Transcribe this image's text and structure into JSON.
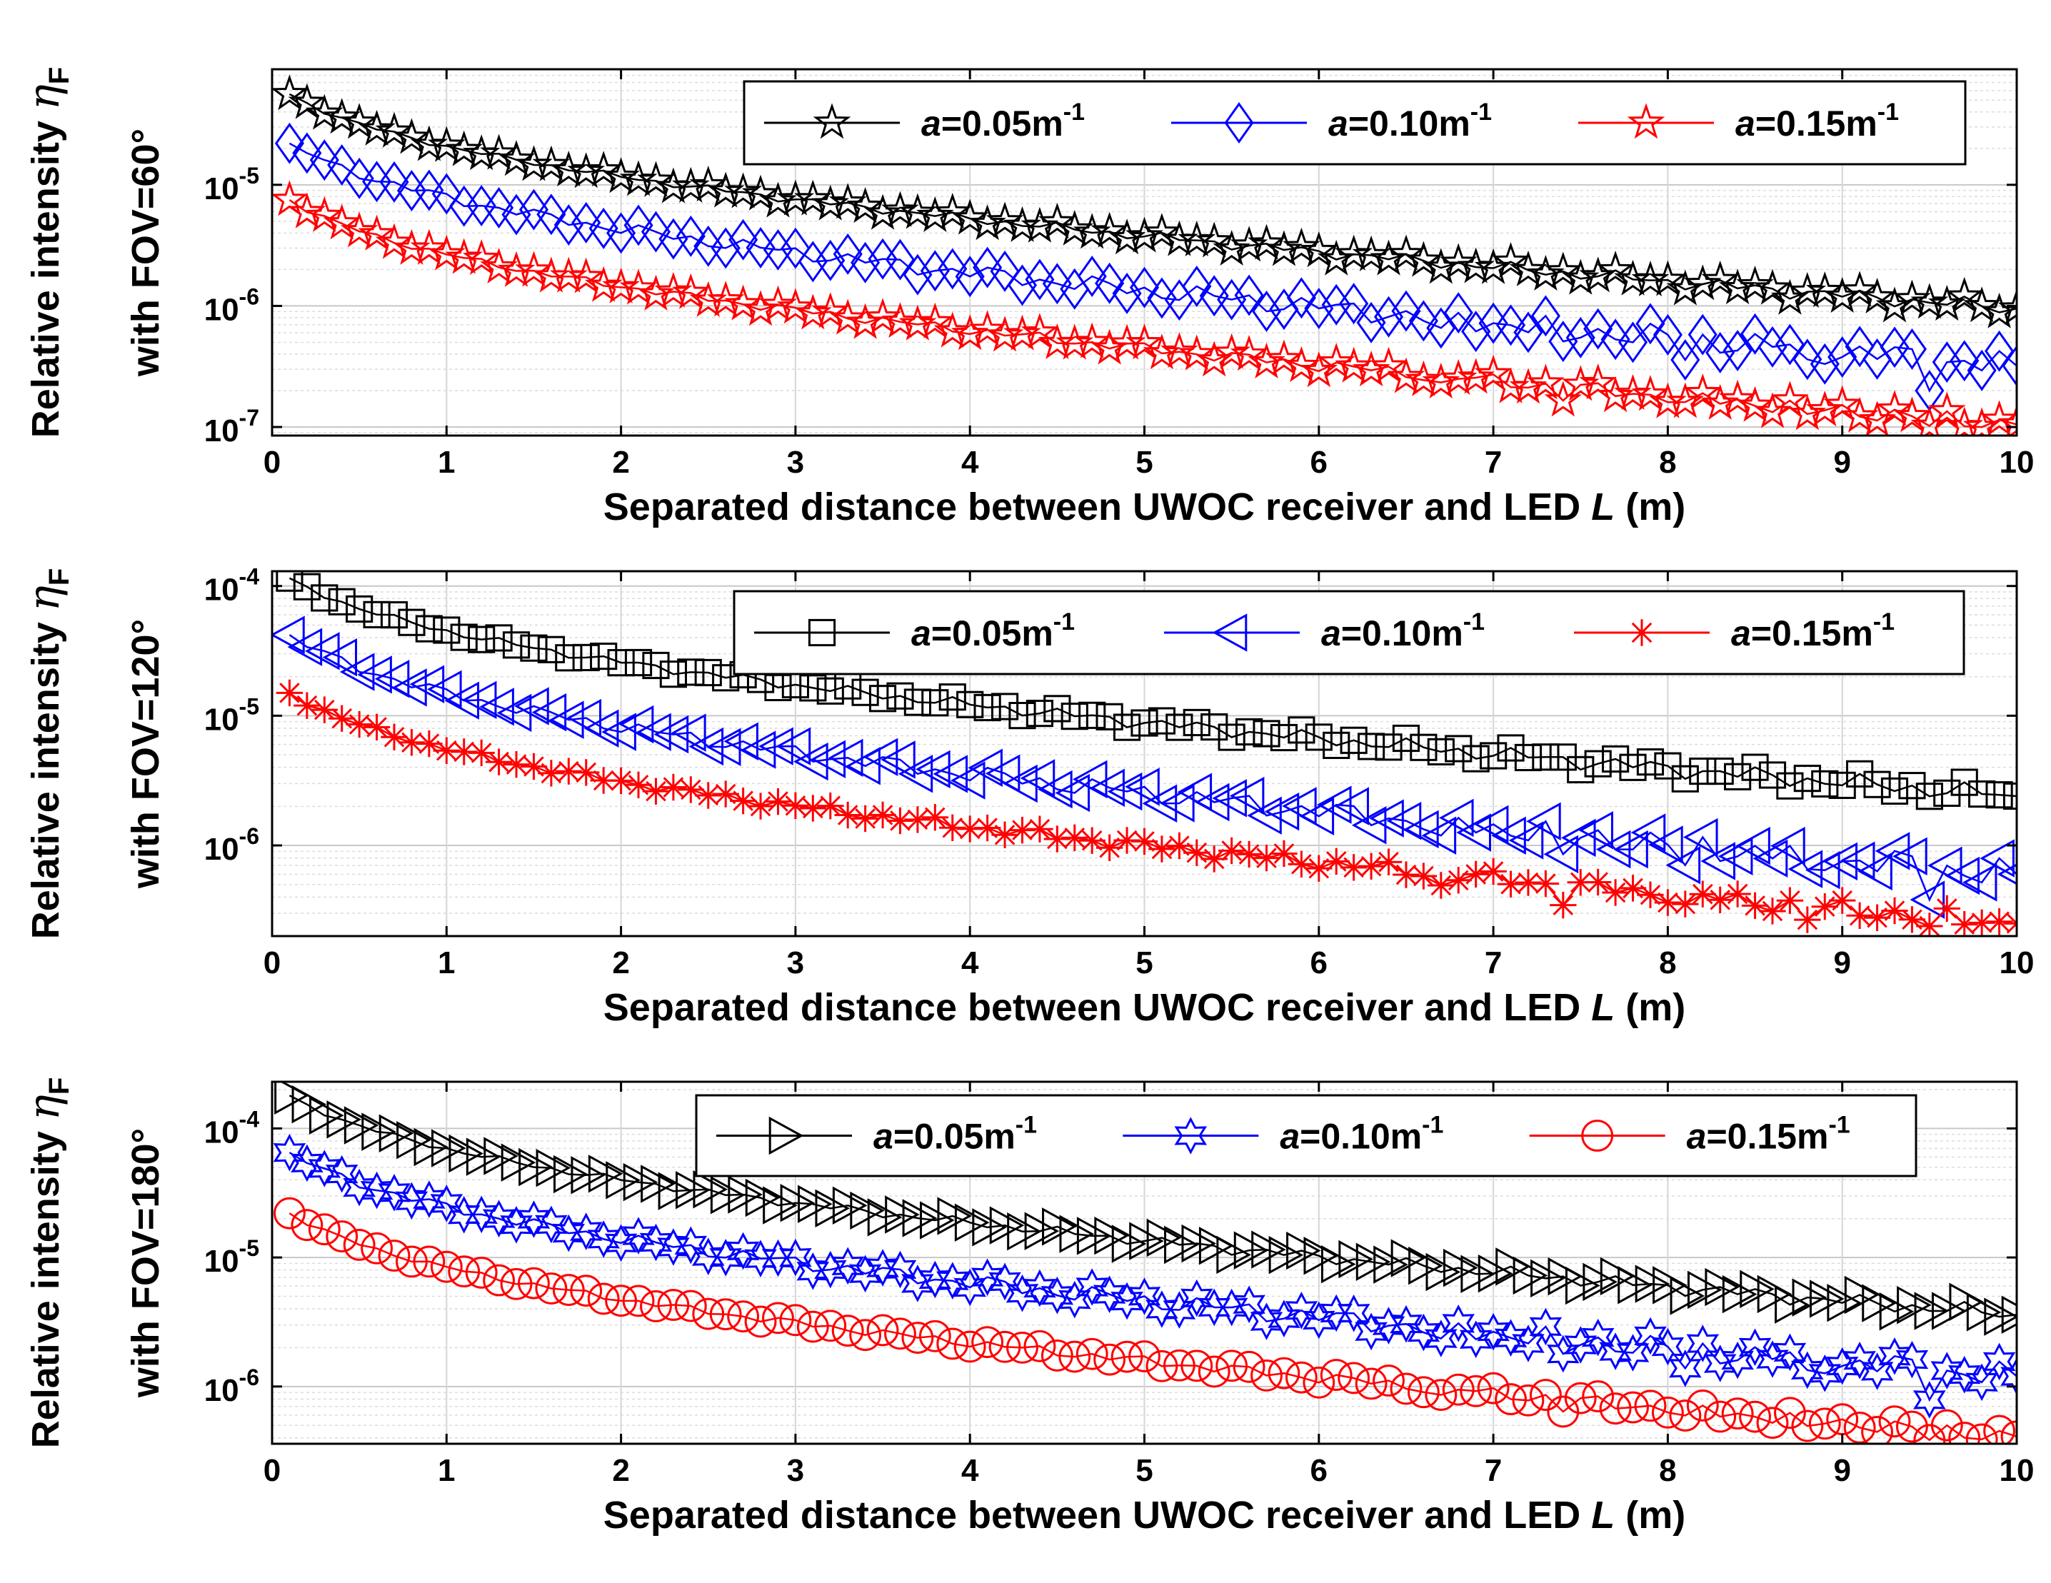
{
  "chart_data": [
    {
      "type": "line",
      "panel": "FOV=60°",
      "ylabel": {
        "line1": "Relative intensity ",
        "symbol": "η",
        "subscript": "F",
        "line2": "with FOV=60°"
      },
      "xlabel": {
        "text": "Separated distance between UWOC receiver and LED ",
        "italic": "L",
        "unit": " (m)"
      },
      "xlim": [
        0,
        10
      ],
      "ylim": [
        8.5e-08,
        9e-05
      ],
      "xticks": [
        "0",
        "1",
        "2",
        "3",
        "4",
        "5",
        "6",
        "7",
        "8",
        "9",
        "10"
      ],
      "yticks": [
        {
          "base": "10",
          "exp": "-5",
          "value": 1e-05
        },
        {
          "base": "10",
          "exp": "-6",
          "value": 1e-06
        },
        {
          "base": "10",
          "exp": "-7",
          "value": 1e-07
        }
      ],
      "grid": true,
      "legend_position": "top-right",
      "series": [
        {
          "name": "a=0.05m-1",
          "label_italic": "a",
          "label_rest": "=0.05m",
          "label_sup": "-1",
          "color": "#000000",
          "marker": "pentagram",
          "start": 5.6e-05,
          "end": 9.5e-07,
          "amp": 0.05,
          "dip_level": 0,
          "phase": 0.3
        },
        {
          "name": "a=0.10m-1",
          "label_italic": "a",
          "label_rest": "=0.10m",
          "label_sup": "-1",
          "color": "#0000ff",
          "marker": "diamond",
          "start": 2.2e-05,
          "end": 3.2e-07,
          "amp": 0.1,
          "dip_level": 0.15,
          "phase": 1.7
        },
        {
          "name": "a=0.15m-1",
          "label_italic": "a",
          "label_rest": "=0.15m",
          "label_sup": "-1",
          "color": "#ff0000",
          "marker": "pentagram",
          "start": 7.5e-06,
          "end": 1.05e-07,
          "amp": 0.06,
          "dip_level": 0.08,
          "phase": 2.9
        }
      ]
    },
    {
      "type": "line",
      "panel": "FOV=120°",
      "ylabel": {
        "line1": "Relative intensity ",
        "symbol": "η",
        "subscript": "F",
        "line2": "with FOV=120°"
      },
      "xlabel": {
        "text": "Separated distance between UWOC receiver and LED ",
        "italic": "L",
        "unit": " (m)"
      },
      "xlim": [
        0,
        10
      ],
      "ylim": [
        2e-07,
        0.00013
      ],
      "xticks": [
        "0",
        "1",
        "2",
        "3",
        "4",
        "5",
        "6",
        "7",
        "8",
        "9",
        "10"
      ],
      "yticks": [
        {
          "base": "10",
          "exp": "-4",
          "value": 0.0001
        },
        {
          "base": "10",
          "exp": "-5",
          "value": 1e-05
        },
        {
          "base": "10",
          "exp": "-6",
          "value": 1e-06
        }
      ],
      "grid": true,
      "legend_position": "top-right",
      "series": [
        {
          "name": "a=0.05m-1",
          "label_italic": "a",
          "label_rest": "=0.05m",
          "label_sup": "-1",
          "color": "#000000",
          "marker": "square",
          "start": 0.000115,
          "end": 2.4e-06,
          "amp": 0.06,
          "dip_level": 0,
          "phase": 0.8
        },
        {
          "name": "a=0.10m-1",
          "label_italic": "a",
          "label_rest": "=0.10m",
          "label_sup": "-1",
          "color": "#0000ff",
          "marker": "triangle-left",
          "start": 4.2e-05,
          "end": 6e-07,
          "amp": 0.1,
          "dip_level": 0.18,
          "phase": 2.1
        },
        {
          "name": "a=0.15m-1",
          "label_italic": "a",
          "label_rest": "=0.15m",
          "label_sup": "-1",
          "color": "#ff0000",
          "marker": "asterisk",
          "start": 1.5e-05,
          "end": 2.5e-07,
          "amp": 0.06,
          "dip_level": 0.1,
          "phase": 3.3
        }
      ]
    },
    {
      "type": "line",
      "panel": "FOV=180°",
      "ylabel": {
        "line1": "Relative intensity ",
        "symbol": "η",
        "subscript": "F",
        "line2": "with FOV=180°"
      },
      "xlabel": {
        "text": "Separated distance between UWOC receiver and LED ",
        "italic": "L",
        "unit": " (m)"
      },
      "xlim": [
        0,
        10
      ],
      "ylim": [
        3.6e-07,
        0.00023
      ],
      "xticks": [
        "0",
        "1",
        "2",
        "3",
        "4",
        "5",
        "6",
        "7",
        "8",
        "9",
        "10"
      ],
      "yticks": [
        {
          "base": "10",
          "exp": "-4",
          "value": 0.0001
        },
        {
          "base": "10",
          "exp": "-5",
          "value": 1e-05
        },
        {
          "base": "10",
          "exp": "-6",
          "value": 1e-06
        }
      ],
      "grid": true,
      "legend_position": "top-right",
      "series": [
        {
          "name": "a=0.05m-1",
          "label_italic": "a",
          "label_rest": "=0.05m",
          "label_sup": "-1",
          "color": "#000000",
          "marker": "triangle-right",
          "start": 0.00018,
          "end": 3.6e-06,
          "amp": 0.05,
          "dip_level": 0,
          "phase": 0.5
        },
        {
          "name": "a=0.10m-1",
          "label_italic": "a",
          "label_rest": "=0.10m",
          "label_sup": "-1",
          "color": "#0000ff",
          "marker": "hexagram",
          "start": 6.5e-05,
          "end": 1.2e-06,
          "amp": 0.09,
          "dip_level": 0.15,
          "phase": 1.9
        },
        {
          "name": "a=0.15m-1",
          "label_italic": "a",
          "label_rest": "=0.15m",
          "label_sup": "-1",
          "color": "#ff0000",
          "marker": "circle",
          "start": 2.2e-05,
          "end": 4.1e-07,
          "amp": 0.05,
          "dip_level": 0.08,
          "phase": 2.7
        }
      ]
    }
  ]
}
